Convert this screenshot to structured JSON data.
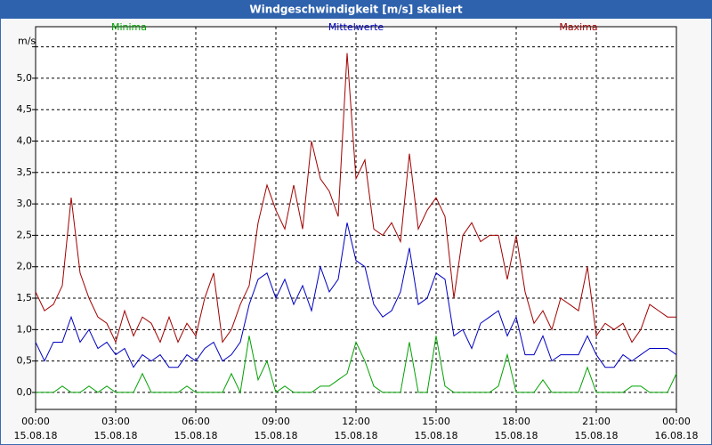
{
  "chart_data": {
    "type": "line",
    "title": "Windgeschwindigkeit [m/s] skaliert",
    "x": [
      0,
      20,
      40,
      60,
      80,
      100,
      120,
      140,
      160,
      180,
      200,
      220,
      240,
      260,
      280,
      300,
      320,
      340,
      360,
      380,
      400,
      420,
      440,
      460,
      480,
      500,
      520,
      540,
      560,
      580,
      600,
      620,
      640,
      660,
      680,
      700,
      720,
      740,
      760,
      780,
      800,
      820,
      840,
      860,
      880,
      900,
      920,
      940,
      960,
      980,
      1000,
      1020,
      1040,
      1060,
      1080,
      1100,
      1120,
      1140,
      1160,
      1180,
      1200,
      1220,
      1240,
      1260,
      1280,
      1300,
      1320,
      1340,
      1360,
      1380,
      1400,
      1420,
      1440
    ],
    "xlim": [
      0,
      1440
    ],
    "xticks": [
      {
        "value": 0,
        "label": "00:00",
        "date": "15.08.18"
      },
      {
        "value": 180,
        "label": "03:00",
        "date": "15.08.18"
      },
      {
        "value": 360,
        "label": "06:00",
        "date": "15.08.18"
      },
      {
        "value": 540,
        "label": "09:00",
        "date": "15.08.18"
      },
      {
        "value": 720,
        "label": "12:00",
        "date": "15.08.18"
      },
      {
        "value": 900,
        "label": "15:00",
        "date": "15.08.18"
      },
      {
        "value": 1080,
        "label": "18:00",
        "date": "15.08.18"
      },
      {
        "value": 1260,
        "label": "21:00",
        "date": "15.08.18"
      },
      {
        "value": 1440,
        "label": "00:00",
        "date": "16.08.18"
      }
    ],
    "ylim": [
      -0.27,
      5.82
    ],
    "yticks": [
      {
        "value": 0,
        "label": "0,0"
      },
      {
        "value": 0.5,
        "label": "0,5"
      },
      {
        "value": 1,
        "label": "1,0"
      },
      {
        "value": 1.5,
        "label": "1,5"
      },
      {
        "value": 2,
        "label": "2,0"
      },
      {
        "value": 2.5,
        "label": "2,5"
      },
      {
        "value": 3,
        "label": "3,0"
      },
      {
        "value": 3.5,
        "label": "3,5"
      },
      {
        "value": 4,
        "label": "4,0"
      },
      {
        "value": 4.5,
        "label": "4,5"
      },
      {
        "value": 5,
        "label": "5,0"
      },
      {
        "value": 5.5,
        "label": "m/s"
      }
    ],
    "grid": true,
    "series": [
      {
        "name": "Minima",
        "color": "#00a000",
        "values": [
          0,
          0,
          0,
          0.1,
          0,
          0,
          0.1,
          0,
          0.1,
          0,
          0,
          0,
          0.3,
          0,
          0,
          0,
          0,
          0.1,
          0,
          0,
          0,
          0,
          0.3,
          0,
          0.9,
          0.2,
          0.5,
          0,
          0.1,
          0,
          0,
          0,
          0.1,
          0.1,
          0.2,
          0.3,
          0.8,
          0.5,
          0.1,
          0,
          0,
          0,
          0.8,
          0,
          0,
          0.9,
          0.1,
          0,
          0,
          0,
          0,
          0,
          0.1,
          0.6,
          0,
          0,
          0,
          0.2,
          0,
          0,
          0,
          0,
          0.4,
          0,
          0,
          0,
          0,
          0.1,
          0.1,
          0,
          0,
          0,
          0.3
        ]
      },
      {
        "name": "Mittelwerte",
        "color": "#0000c0",
        "values": [
          0.8,
          0.5,
          0.8,
          0.8,
          1.2,
          0.8,
          1.0,
          0.7,
          0.8,
          0.6,
          0.7,
          0.4,
          0.6,
          0.5,
          0.6,
          0.4,
          0.4,
          0.6,
          0.5,
          0.7,
          0.8,
          0.5,
          0.6,
          0.8,
          1.4,
          1.8,
          1.9,
          1.5,
          1.8,
          1.4,
          1.7,
          1.3,
          2.0,
          1.6,
          1.8,
          2.7,
          2.1,
          2.0,
          1.4,
          1.2,
          1.3,
          1.6,
          2.3,
          1.4,
          1.5,
          1.9,
          1.8,
          0.9,
          1.0,
          0.7,
          1.1,
          1.2,
          1.3,
          0.9,
          1.2,
          0.6,
          0.6,
          0.9,
          0.5,
          0.6,
          0.6,
          0.6,
          0.9,
          0.6,
          0.4,
          0.4,
          0.6,
          0.5,
          0.6,
          0.7,
          0.7,
          0.7,
          0.6
        ]
      },
      {
        "name": "Maxima",
        "color": "#a00000",
        "values": [
          1.6,
          1.3,
          1.4,
          1.7,
          3.1,
          1.9,
          1.5,
          1.2,
          1.1,
          0.8,
          1.3,
          0.9,
          1.2,
          1.1,
          0.8,
          1.2,
          0.8,
          1.1,
          0.9,
          1.5,
          1.9,
          0.8,
          1.0,
          1.4,
          1.7,
          2.7,
          3.3,
          2.9,
          2.6,
          3.3,
          2.6,
          4.0,
          3.4,
          3.2,
          2.8,
          5.4,
          3.4,
          3.7,
          2.6,
          2.5,
          2.7,
          2.4,
          3.8,
          2.6,
          2.9,
          3.1,
          2.8,
          1.5,
          2.5,
          2.7,
          2.4,
          2.5,
          2.5,
          1.8,
          2.5,
          1.6,
          1.1,
          1.3,
          1.0,
          1.5,
          1.4,
          1.3,
          2.0,
          0.9,
          1.1,
          1.0,
          1.1,
          0.8,
          1.0,
          1.4,
          1.3,
          1.2,
          1.2
        ]
      }
    ]
  }
}
